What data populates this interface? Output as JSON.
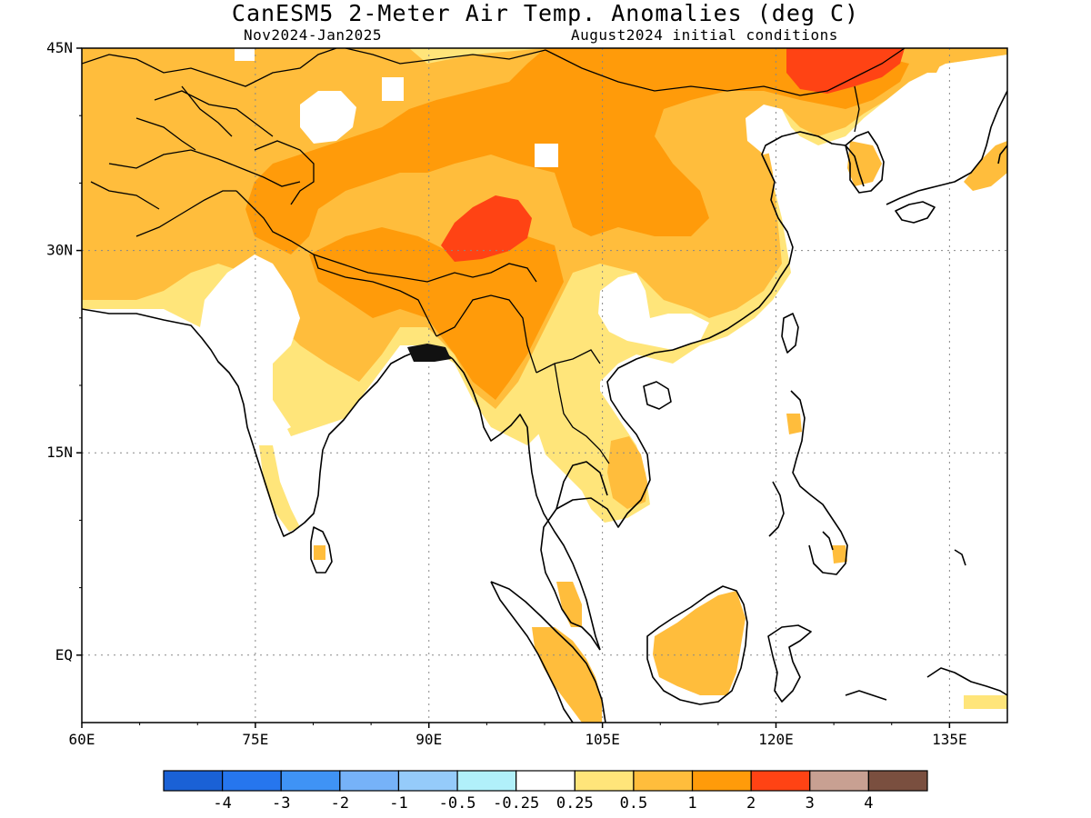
{
  "title": "CanESM5 2-Meter Air Temp. Anomalies (deg C)",
  "subtitle_left": "Nov2024-Jan2025",
  "subtitle_right": "August2024 initial conditions",
  "lat_ticks": [
    {
      "value": 45,
      "label": "45N"
    },
    {
      "value": 30,
      "label": "30N"
    },
    {
      "value": 15,
      "label": "15N"
    },
    {
      "value": 0,
      "label": "EQ"
    }
  ],
  "lon_ticks": [
    {
      "value": 60,
      "label": "60E"
    },
    {
      "value": 75,
      "label": "75E"
    },
    {
      "value": 90,
      "label": "90E"
    },
    {
      "value": 105,
      "label": "105E"
    },
    {
      "value": 120,
      "label": "120E"
    },
    {
      "value": 135,
      "label": "135E"
    }
  ],
  "colorbar": {
    "colors": [
      "#1a61d6",
      "#2676ee",
      "#3f93f5",
      "#76b2f8",
      "#95cbfa",
      "#b1f0fa",
      "#ffffff",
      "#ffe57a",
      "#ffbd3c",
      "#ff9b0a",
      "#ff4314",
      "#c8a092",
      "#7a4f3f"
    ],
    "labels": [
      "-4",
      "-3",
      "-2",
      "-1",
      "-0.5",
      "-0.25",
      "0.25",
      "0.5",
      "1",
      "2",
      "3",
      "4"
    ]
  },
  "palette": {
    "land_warm_05": "#ffe57a",
    "land_warm_1": "#ffbd3c",
    "land_warm_2": "#ff9b0a",
    "land_warm_3": "#ff4314",
    "coast": "#000000"
  }
}
